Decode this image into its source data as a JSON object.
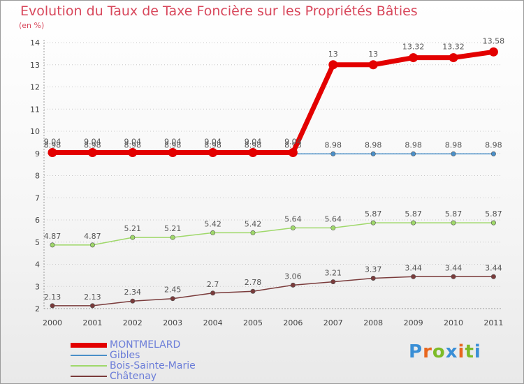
{
  "page": {
    "title": "Evolution du Taux de Taxe Foncière sur les Propriétés Bâties",
    "unit": "(en %)",
    "logo": "Proxiti",
    "logo_letter_colors": [
      "#3a8fd6",
      "#e8661e",
      "#7dbb27",
      "#3a8fd6",
      "#e8661e",
      "#7dbb27",
      "#3a8fd6"
    ]
  },
  "chart_data": {
    "type": "line",
    "title": "Evolution du Taux de Taxe Foncière sur les Propriétés Bâties",
    "ylabel": "(en %)",
    "xlabel": "",
    "x": [
      "2000",
      "2001",
      "2002",
      "2003",
      "2004",
      "2005",
      "2006",
      "2007",
      "2008",
      "2009",
      "2010",
      "2011"
    ],
    "ylim": [
      2,
      14
    ],
    "yticks": [
      "2",
      "3",
      "4",
      "5",
      "6",
      "7",
      "8",
      "9",
      "10",
      "11",
      "12",
      "13",
      "14"
    ],
    "legend_position": "bottom-left",
    "series": [
      {
        "name": "Gibles",
        "color": "#4a8fc8",
        "values": [
          8.98,
          8.98,
          8.98,
          8.98,
          8.98,
          8.98,
          8.98,
          8.98,
          8.98,
          8.98,
          8.98,
          8.98
        ],
        "labels": [
          "8.98",
          "8.98",
          "8.98",
          "8.98",
          "8.98",
          "8.98",
          "8.98",
          "8.98",
          "8.98",
          "8.98",
          "8.98",
          "8.98"
        ]
      },
      {
        "name": "Bois-Sainte-Marie",
        "color": "#9fd86a",
        "values": [
          4.87,
          4.87,
          5.21,
          5.21,
          5.42,
          5.42,
          5.64,
          5.64,
          5.87,
          5.87,
          5.87,
          5.87
        ],
        "labels": [
          "4.87",
          "4.87",
          "5.21",
          "5.21",
          "5.42",
          "5.42",
          "5.64",
          "5.64",
          "5.87",
          "5.87",
          "5.87",
          "5.87"
        ]
      },
      {
        "name": "Châtenay",
        "color": "#7a3b3b",
        "values": [
          2.13,
          2.13,
          2.34,
          2.45,
          2.7,
          2.78,
          3.06,
          3.21,
          3.37,
          3.44,
          3.44,
          3.44
        ],
        "labels": [
          "2.13",
          "2.13",
          "2.34",
          "2.45",
          "2.7",
          "2.78",
          "3.06",
          "3.21",
          "3.37",
          "3.44",
          "3.44",
          "3.44"
        ]
      },
      {
        "name": "MONTMELARD",
        "color": "#e30000",
        "values": [
          9.04,
          9.04,
          9.04,
          9.04,
          9.04,
          9.04,
          9.04,
          13,
          13,
          13.32,
          13.32,
          13.58
        ],
        "labels": [
          "9.04",
          "9.04",
          "9.04",
          "9.04",
          "9.04",
          "9.04",
          "9.04",
          "13",
          "13",
          "13.32",
          "13.32",
          "13.58"
        ]
      }
    ],
    "legend": [
      "MONTMELARD",
      "Gibles",
      "Bois-Sainte-Marie",
      "Châtenay"
    ]
  }
}
